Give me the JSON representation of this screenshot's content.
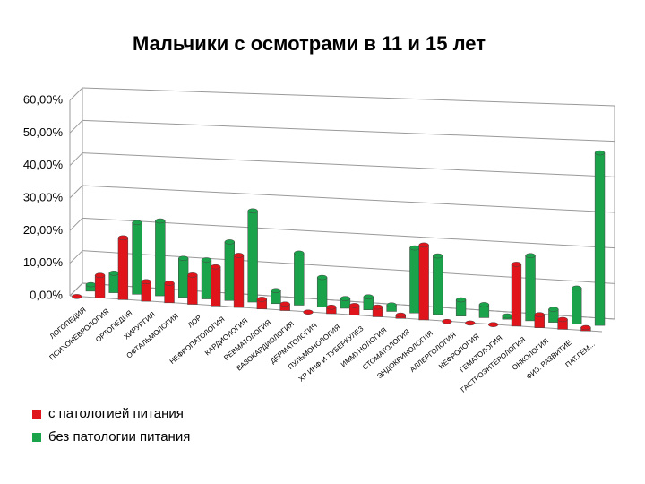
{
  "chart_data": {
    "type": "bar",
    "title": "Мальчики с осмотрами в 11 и 15 лет",
    "categories": [
      "ЛОГОПЕДИЯ",
      "ПСИХОНЕВРОЛОГИЯ",
      "ОРТОПЕДИЯ",
      "ХИРУРГИЯ",
      "ОФТАЛЬМОЛОГИЯ",
      "ЛОР",
      "НЕФРОПАТОЛОГИЯ",
      "КАРДИОЛОГИЯ",
      "РЕВМАТОЛОГИЯ",
      "ВАЗОКАРДИОЛОГИЯ",
      "ДЕРМАТОЛОГИЯ",
      "ПУЛЬМОНОЛОГИЯ",
      "ХР ИНФ И ТУБЕРКУЛЕЗ",
      "ИММУНОЛОГИЯ",
      "СТОМАТОЛОГИЯ",
      "ЭНДОКРИНОЛОГИЯ",
      "АЛЛЕРГОЛОГИЯ",
      "НЕФРОЛОГИЯ",
      "ГЕМАТОЛОГИЯ",
      "ГАСТРОЭНТЕРОЛОГИЯ",
      "ОНКОЛОГИЯ",
      "ФИЗ. РАЗВИТИЕ",
      "ПАТ.ГЕМ..."
    ],
    "series": [
      {
        "name": "с патологией питания",
        "color": "#e0141b",
        "values": [
          0,
          7,
          19,
          6,
          6,
          9,
          12,
          16,
          3,
          2,
          0,
          2,
          3,
          3,
          1,
          23,
          0,
          0,
          0,
          19,
          4,
          3,
          1
        ]
      },
      {
        "name": "без патологии питания",
        "color": "#1aa34a",
        "values": [
          2,
          6,
          22,
          23,
          12,
          12,
          18,
          28,
          4,
          16,
          9,
          3,
          4,
          2,
          20,
          18,
          5,
          4,
          1,
          20,
          4,
          11,
          53
        ]
      }
    ],
    "ylim": [
      0,
      60
    ],
    "yticks": [
      {
        "value": 0,
        "label": "0,00%"
      },
      {
        "value": 10,
        "label": "10,00%"
      },
      {
        "value": 20,
        "label": "20,00%"
      },
      {
        "value": 30,
        "label": "30,00%"
      },
      {
        "value": 40,
        "label": "40,00%"
      },
      {
        "value": 50,
        "label": "50,00%"
      },
      {
        "value": 60,
        "label": "60,00%"
      }
    ],
    "grid": true,
    "legend": "bottom-left"
  }
}
